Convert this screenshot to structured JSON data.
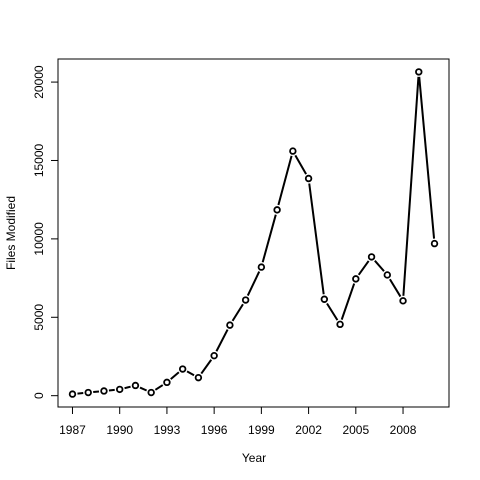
{
  "chart_data": {
    "type": "line",
    "x_label": "Year",
    "y_label": "Files Modified",
    "x": [
      1987,
      1988,
      1989,
      1990,
      1991,
      1992,
      1993,
      1994,
      1995,
      1996,
      1997,
      1998,
      1999,
      2000,
      2001,
      2002,
      2003,
      2004,
      2005,
      2006,
      2007,
      2008,
      2009,
      2010
    ],
    "series": [
      {
        "color": "#000000",
        "values": [
          100,
          200,
          300,
          400,
          650,
          200,
          850,
          1700,
          1150,
          2550,
          4500,
          6100,
          8200,
          11850,
          15600,
          13850,
          6150,
          4550,
          7450,
          8850,
          7700,
          6050,
          20650,
          9700
        ]
      }
    ],
    "xlim": [
      1986.08,
      2010.92
    ],
    "xticks": [
      1987,
      1990,
      1993,
      1996,
      1999,
      2002,
      2005,
      2008
    ],
    "ylim": [
      -722,
      21472
    ],
    "yticks": [
      0,
      5000,
      10000,
      15000,
      20000
    ]
  }
}
